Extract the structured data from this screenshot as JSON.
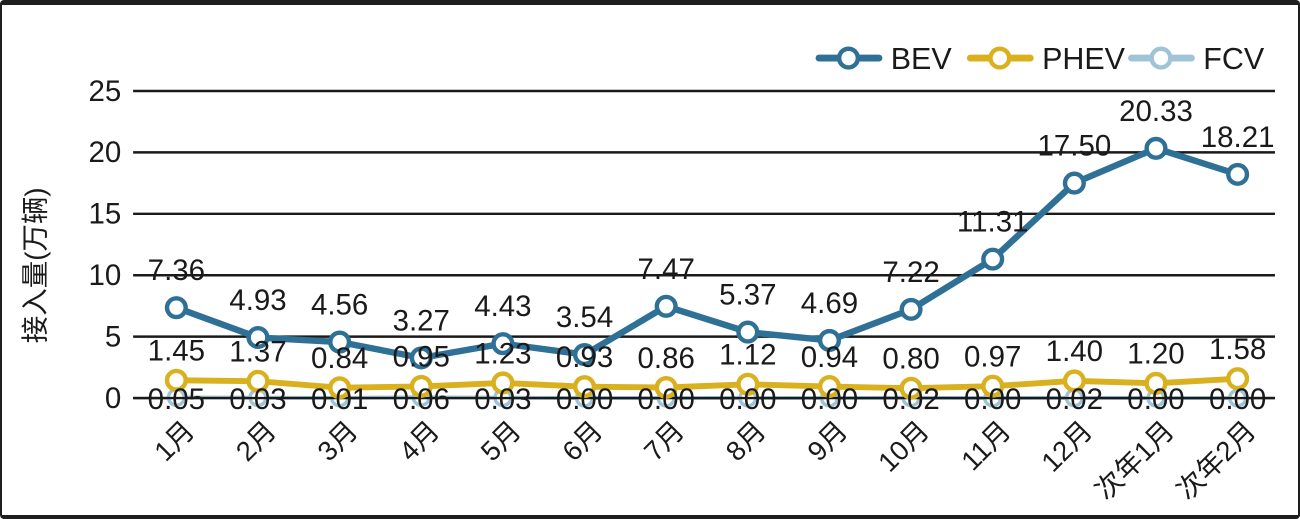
{
  "chart_data": {
    "type": "line",
    "title": "",
    "xlabel": "",
    "ylabel": "接入量(万辆)",
    "ylim": [
      0,
      25
    ],
    "yticks": [
      0,
      5,
      10,
      15,
      20,
      25
    ],
    "grid": true,
    "legend_position": "top-right",
    "data_label_format": "0.00",
    "categories": [
      "1月",
      "2月",
      "3月",
      "4月",
      "5月",
      "6月",
      "7月",
      "8月",
      "9月",
      "10月",
      "11月",
      "12月",
      "次年1月",
      "次年2月"
    ],
    "series": [
      {
        "name": "BEV",
        "color": "#2f7096",
        "values": [
          7.36,
          4.93,
          4.56,
          3.27,
          4.43,
          3.54,
          7.47,
          5.37,
          4.69,
          7.22,
          11.31,
          17.5,
          20.33,
          18.21
        ]
      },
      {
        "name": "PHEV",
        "color": "#d9b01e",
        "values": [
          1.45,
          1.37,
          0.84,
          0.95,
          1.23,
          0.93,
          0.86,
          1.12,
          0.94,
          0.8,
          0.97,
          1.4,
          1.2,
          1.58
        ]
      },
      {
        "name": "FCV",
        "color": "#9fc4d8",
        "values": [
          0.05,
          0.03,
          0.01,
          0.06,
          0.03,
          0.0,
          0.0,
          0.0,
          0.0,
          0.02,
          0.0,
          0.02,
          0.0,
          0.0
        ]
      }
    ],
    "colors": {
      "grid_line": "#1a1a1a",
      "label_text": "#1a1a1a",
      "background": "#ffffff"
    }
  }
}
